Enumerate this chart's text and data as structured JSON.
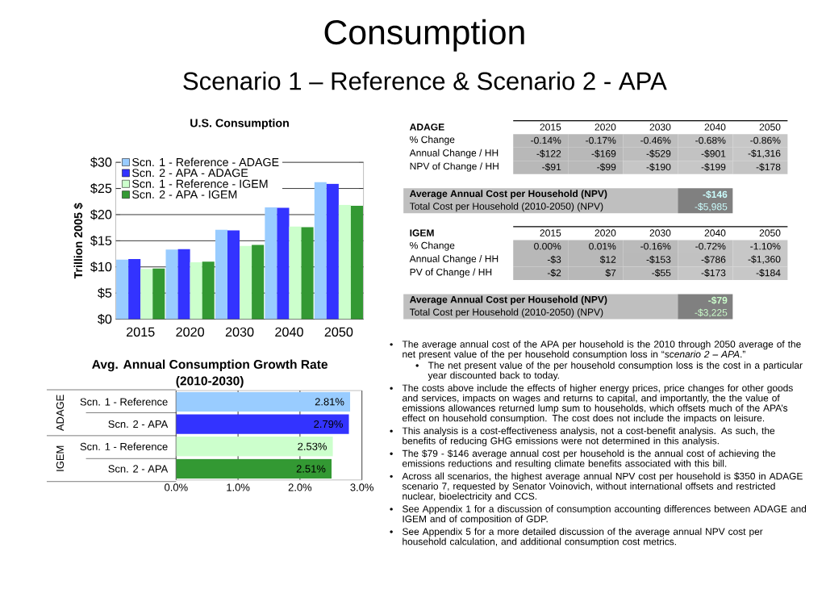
{
  "chart_data": [
    {
      "type": "other",
      "title": "Consumption",
      "subtitle": "Scenario 1 – Reference & Scenario 2 - APA"
    },
    {
      "type": "bar",
      "title": "U.S. Consumption",
      "ylabel": "Trillion 2005 $",
      "categories": [
        "2015",
        "2020",
        "2030",
        "2040",
        "2050"
      ],
      "series": [
        {
          "name": "Scn. 1 - Reference - ADAGE",
          "color": "#99ccff",
          "values": [
            11.4,
            13.3,
            17.1,
            21.4,
            26.2
          ]
        },
        {
          "name": "Scn. 2 - APA - ADAGE",
          "color": "#3333ff",
          "values": [
            11.5,
            13.4,
            17.0,
            21.3,
            25.9
          ]
        },
        {
          "name": "Scn. 1 - Reference - IGEM",
          "color": "#ccffcc",
          "values": [
            9.6,
            10.9,
            14.0,
            17.7,
            21.9
          ]
        },
        {
          "name": "Scn. 2 - APA - IGEM",
          "color": "#339933",
          "values": [
            9.7,
            11.0,
            14.2,
            17.6,
            21.7
          ]
        }
      ],
      "ylim": [
        0,
        30
      ],
      "yticks": [
        {
          "value": 0,
          "label": "$0"
        },
        {
          "value": 5,
          "label": "$5"
        },
        {
          "value": 10,
          "label": "$10"
        },
        {
          "value": 15,
          "label": "$15"
        },
        {
          "value": 20,
          "label": "$20"
        },
        {
          "value": 25,
          "label": "$25"
        },
        {
          "value": 30,
          "label": "$30"
        }
      ],
      "grid": "y",
      "legend": "top left"
    },
    {
      "type": "bar",
      "orientation": "horizontal",
      "title": "Avg. Annual Consumption Growth Rate",
      "subtitle": "(2010-2030)",
      "categories": [
        "Scn. 1 - Reference",
        "Scn. 2 - APA",
        "Scn. 1 - Reference",
        "Scn. 2 - APA"
      ],
      "values": [
        2.81,
        2.79,
        2.53,
        2.51
      ],
      "colors": [
        "#99ccff",
        "#3333ff",
        "#ccffcc",
        "#339933"
      ],
      "value_labels": [
        "2.81%",
        "2.79%",
        "2.53%",
        "2.51%"
      ],
      "xlim": [
        0,
        3
      ],
      "xticks": [
        {
          "value": 0,
          "label": "0.0%"
        },
        {
          "value": 1,
          "label": "1.0%"
        },
        {
          "value": 2,
          "label": "2.0%"
        },
        {
          "value": 3,
          "label": "3.0%"
        }
      ],
      "grid": "x",
      "annotations": [
        "ADAGE",
        "IGEM"
      ]
    },
    {
      "type": "heatmap",
      "title": "ADAGE",
      "categories": [
        "2015",
        "2020",
        "2030",
        "2040",
        "2050"
      ],
      "y_categories": [
        "% Change",
        "Annual Change / HH",
        "NPV of Change / HH"
      ],
      "cells": [
        [
          -0.14,
          -0.17,
          -0.46,
          -0.68,
          -0.86
        ],
        [
          -122,
          -169,
          -529,
          -901,
          -1316
        ],
        [
          -91,
          -99,
          -190,
          -199,
          -178
        ]
      ],
      "cell_labels": [
        [
          "-0.14%",
          "-0.17%",
          "-0.46%",
          "-0.68%",
          "-0.86%"
        ],
        [
          "-$122",
          "-$169",
          "-$529",
          "-$901",
          "-$1,316"
        ],
        [
          "-$91",
          "-$99",
          "-$190",
          "-$199",
          "-$178"
        ]
      ],
      "annotations": [
        "Average Annual Cost per Household (NPV)",
        "-$146",
        "Total Cost per Household (2010-2050) (NPV)",
        "-$5,985"
      ]
    },
    {
      "type": "heatmap",
      "title": "IGEM",
      "categories": [
        "2015",
        "2020",
        "2030",
        "2040",
        "2050"
      ],
      "y_categories": [
        "% Change",
        "Annual Change / HH",
        "PV of Change / HH"
      ],
      "cells": [
        [
          0.0,
          0.01,
          -0.16,
          -0.72,
          -1.1
        ],
        [
          -3,
          12,
          -153,
          -786,
          -1360
        ],
        [
          -2,
          7,
          -55,
          -173,
          -184
        ]
      ],
      "cell_labels": [
        [
          "0.00%",
          "0.01%",
          "-0.16%",
          "-0.72%",
          "-1.10%"
        ],
        [
          "-$3",
          "$12",
          "-$153",
          "-$786",
          "-$1,360"
        ],
        [
          "-$2",
          "$7",
          "-$55",
          "-$173",
          "-$184"
        ]
      ],
      "annotations": [
        "Average Annual Cost per Household (NPV)",
        "-$79",
        "Total Cost per Household (2010-2050) (NPV)",
        "-$3,225"
      ]
    },
    {
      "type": "other",
      "annotations": [
        "The average annual cost of the APA per household is the 2010 through 2050 average of the net present value of the per household consumption loss in “*scenario 2 – APA*.”",
        "The net present value of the per household consumption loss is the cost in a particular year discounted back to today.",
        "The costs above include the effects of higher energy prices, price changes for other goods and services, impacts on wages and returns to capital, and importantly, the the value of emissions allowances returned lump sum to households, which offsets much of the APA’s effect on household consumption. The cost does not include the impacts on leisure.",
        "This analysis is a cost-effectiveness analysis, not a cost-benefit analysis. As such, the benefits of reducing GHG emissions were not determined in this analysis.",
        "The $79 - $146 average annual cost per household is the annual cost of achieving the emissions reductions and resulting climate benefits associated with this bill.",
        "Across all scenarios, the highest average annual NPV cost per household is $350 in ADAGE scenario 7, requested by Senator Voinovich, without international offsets and restricted nuclear, bioelectricity and CCS.",
        "See Appendix 1 for a discussion of consumption accounting differences between ADAGE and IGEM and of composition of GDP.",
        "See Appendix 5 for a more detailed discussion of the average annual NPV cost per household calculation, and additional consumption cost metrics."
      ]
    }
  ]
}
